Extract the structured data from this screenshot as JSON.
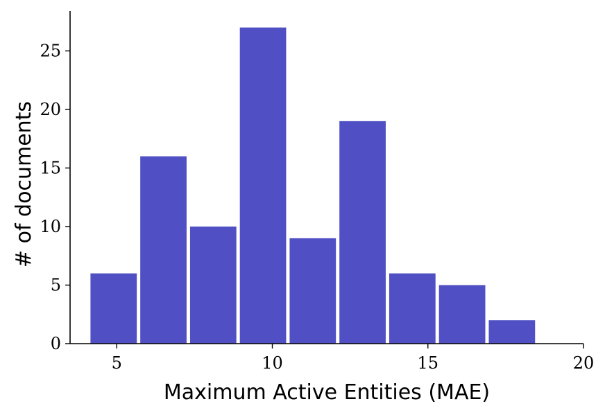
{
  "chart_data": {
    "type": "bar",
    "title": "",
    "xlabel": "Maximum Active Entities (MAE)",
    "ylabel": "# of documents",
    "bins": [
      {
        "start": 4.1,
        "end": 5.7,
        "value": 6
      },
      {
        "start": 5.7,
        "end": 7.3,
        "value": 16
      },
      {
        "start": 7.3,
        "end": 8.9,
        "value": 10
      },
      {
        "start": 8.9,
        "end": 10.5,
        "value": 27
      },
      {
        "start": 10.5,
        "end": 12.1,
        "value": 9
      },
      {
        "start": 12.1,
        "end": 13.7,
        "value": 19
      },
      {
        "start": 13.7,
        "end": 15.3,
        "value": 6
      },
      {
        "start": 15.3,
        "end": 16.9,
        "value": 5
      },
      {
        "start": 16.9,
        "end": 18.5,
        "value": 2
      }
    ],
    "xlim": [
      3.5,
      20
    ],
    "ylim": [
      0,
      28.4
    ],
    "xticks": [
      5,
      10,
      15,
      20
    ],
    "yticks": [
      0,
      5,
      10,
      15,
      20,
      25
    ],
    "bar_color": "#5050c4",
    "grid": false,
    "legend": "none"
  }
}
